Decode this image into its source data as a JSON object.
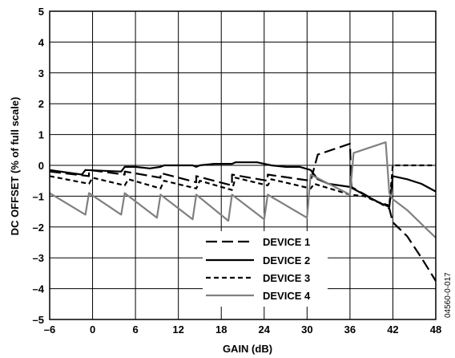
{
  "chart_data": {
    "type": "line",
    "xlabel": "GAIN (dB)",
    "ylabel": "DC OFFSET (% of full scale)",
    "xlim": [
      -6,
      48
    ],
    "ylim": [
      -5,
      5
    ],
    "xticks": [
      -6,
      0,
      6,
      12,
      18,
      24,
      30,
      36,
      42,
      48
    ],
    "yticks": [
      5,
      4,
      3,
      2,
      1,
      0,
      -1,
      -2,
      -3,
      -4,
      -5
    ],
    "xtick_labels": [
      "–6",
      "0",
      "6",
      "12",
      "18",
      "24",
      "30",
      "36",
      "42",
      "48"
    ],
    "ytick_labels": [
      "5",
      "4",
      "3",
      "2",
      "1",
      "0",
      "–1",
      "–2",
      "–3",
      "–4",
      "–5"
    ],
    "grid": true,
    "legend_position": "bottom-center",
    "figure_id": "04560-0-017",
    "series": [
      {
        "name": "DEVICE 1",
        "color": "#000000",
        "dash": "long-dash",
        "x": [
          -6,
          -0.5,
          -0.5,
          4.5,
          4.5,
          9.5,
          9.5,
          14.5,
          14.5,
          19.5,
          19.5,
          24.5,
          24.5,
          30.5,
          31.5,
          36,
          36.2,
          40,
          41.5,
          42,
          44,
          46,
          48
        ],
        "y": [
          -0.2,
          -0.35,
          -0.15,
          -0.3,
          -0.2,
          -0.4,
          -0.25,
          -0.55,
          -0.35,
          -0.65,
          -0.3,
          -0.5,
          -0.3,
          -0.5,
          0.35,
          0.7,
          -0.7,
          -1.2,
          -1.4,
          -1.85,
          -2.3,
          -3.0,
          -3.75
        ]
      },
      {
        "name": "DEVICE 2",
        "color": "#000000",
        "dash": "solid",
        "x": [
          -6,
          -1.5,
          -1,
          4,
          4.5,
          6,
          8,
          9.5,
          10,
          12,
          14,
          14.5,
          15,
          17,
          19.5,
          20,
          23,
          24,
          25,
          27,
          29,
          30.5,
          31.5,
          33,
          36,
          38,
          40,
          41.5,
          42,
          44,
          46,
          48
        ],
        "y": [
          -0.15,
          -0.3,
          -0.15,
          -0.2,
          -0.05,
          -0.05,
          -0.1,
          -0.05,
          0.0,
          0.0,
          0.0,
          -0.05,
          0.0,
          0.05,
          0.05,
          0.1,
          0.1,
          0.05,
          0.0,
          -0.05,
          -0.05,
          -0.15,
          -0.45,
          -0.6,
          -0.7,
          -0.95,
          -1.2,
          -1.35,
          -0.35,
          -0.45,
          -0.6,
          -0.85
        ]
      },
      {
        "name": "DEVICE 3",
        "color": "#000000",
        "dash": "short-dash",
        "x": [
          -6,
          -0.5,
          0,
          4.5,
          5,
          9.5,
          10,
          14.5,
          15,
          19.5,
          20,
          24.5,
          25,
          30.5,
          31,
          36,
          38,
          40,
          41.5,
          42,
          44,
          46,
          48
        ],
        "y": [
          -0.35,
          -0.6,
          -0.4,
          -0.65,
          -0.45,
          -0.75,
          -0.5,
          -0.75,
          -0.5,
          -0.8,
          -0.4,
          -0.65,
          -0.45,
          -0.75,
          -0.6,
          -0.95,
          -1.0,
          -1.2,
          -1.3,
          0.0,
          0.0,
          0.0,
          0.0
        ]
      },
      {
        "name": "DEVICE 4",
        "color": "#808080",
        "dash": "solid",
        "x": [
          -6,
          -1,
          -0.5,
          4,
          4.5,
          9,
          9.5,
          14,
          14.5,
          19,
          19.5,
          24,
          24.5,
          30,
          30.5,
          36,
          36.5,
          41,
          41.5,
          42,
          44,
          46,
          48
        ],
        "y": [
          -0.9,
          -1.6,
          -0.9,
          -1.6,
          -0.9,
          -1.7,
          -0.95,
          -1.75,
          -0.95,
          -1.8,
          -0.95,
          -1.75,
          -0.95,
          -1.7,
          -0.3,
          -0.95,
          0.4,
          0.75,
          -0.9,
          -1.1,
          -1.45,
          -1.9,
          -2.35
        ]
      }
    ]
  }
}
